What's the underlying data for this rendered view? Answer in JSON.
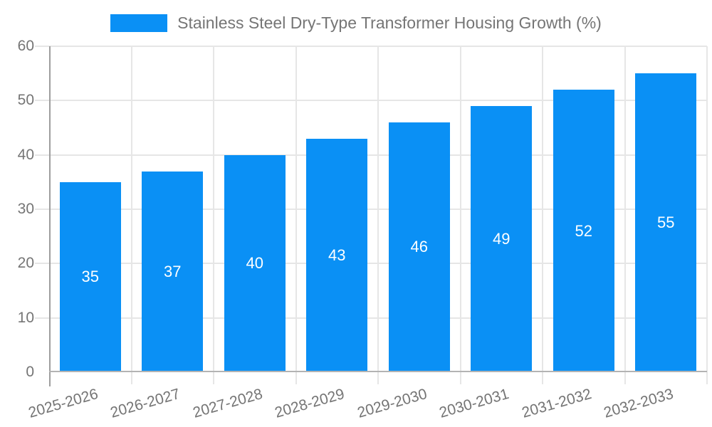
{
  "legend": {
    "label": "Stainless Steel Dry-Type Transformer Housing Growth (%)"
  },
  "chart_data": {
    "type": "bar",
    "title": "Stainless Steel Dry-Type Transformer Housing Growth (%)",
    "categories": [
      "2025-2026",
      "2026-2027",
      "2027-2028",
      "2028-2029",
      "2029-2030",
      "2030-2031",
      "2031-2032",
      "2032-2033"
    ],
    "values": [
      35,
      37,
      40,
      43,
      46,
      49,
      52,
      55
    ],
    "xlabel": "",
    "ylabel": "",
    "ylim": [
      0,
      60
    ],
    "yticks": [
      0,
      10,
      20,
      30,
      40,
      50,
      60
    ],
    "grid": "horizontal and vertical gridlines on",
    "legend_position": "top-center",
    "x_label_rotation_deg": -16,
    "colors": {
      "bar": "#0a90f5",
      "bar_label_text": "#ffffff",
      "axis_text": "#757575",
      "legend_text": "#757575",
      "gridline": "#e6e6e6",
      "axis_line": "#9e9e9e",
      "baseline": "#b3b3b3",
      "background": "#ffffff"
    }
  }
}
